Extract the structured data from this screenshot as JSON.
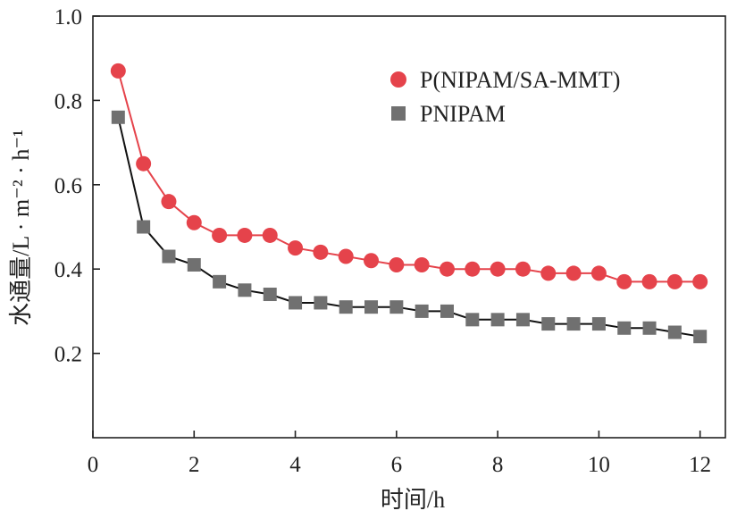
{
  "chart_data": {
    "type": "line",
    "title": "",
    "xlabel": "时间/h",
    "ylabel": "水通量/L · m⁻² · h⁻¹",
    "xlim": [
      0,
      12.5
    ],
    "ylim": [
      0,
      1.0
    ],
    "xticks": [
      0,
      2,
      4,
      6,
      8,
      10,
      12
    ],
    "yticks": [
      0.2,
      0.4,
      0.6,
      0.8,
      1.0
    ],
    "ytick_labels": [
      "0.2",
      "0.4",
      "0.6",
      "0.8",
      "1.0"
    ],
    "grid": false,
    "legend_position": "top-right",
    "x": [
      0.5,
      1.0,
      1.5,
      2.0,
      2.5,
      3.0,
      3.5,
      4.0,
      4.5,
      5.0,
      5.5,
      6.0,
      6.5,
      7.0,
      7.5,
      8.0,
      8.5,
      9.0,
      9.5,
      10.0,
      10.5,
      11.0,
      11.5,
      12.0
    ],
    "series": [
      {
        "name": "P(NIPAM/SA-MMT)",
        "color": "#e5434b",
        "marker": "circle",
        "values": [
          0.87,
          0.65,
          0.56,
          0.51,
          0.48,
          0.48,
          0.48,
          0.45,
          0.44,
          0.43,
          0.42,
          0.41,
          0.41,
          0.4,
          0.4,
          0.4,
          0.4,
          0.39,
          0.39,
          0.39,
          0.37,
          0.37,
          0.37,
          0.37
        ]
      },
      {
        "name": "PNIPAM",
        "color": "#707070",
        "line_color": "#111111",
        "marker": "square",
        "values": [
          0.76,
          0.5,
          0.43,
          0.41,
          0.37,
          0.35,
          0.34,
          0.32,
          0.32,
          0.31,
          0.31,
          0.31,
          0.3,
          0.3,
          0.28,
          0.28,
          0.28,
          0.27,
          0.27,
          0.27,
          0.26,
          0.26,
          0.25,
          0.24
        ]
      }
    ]
  }
}
